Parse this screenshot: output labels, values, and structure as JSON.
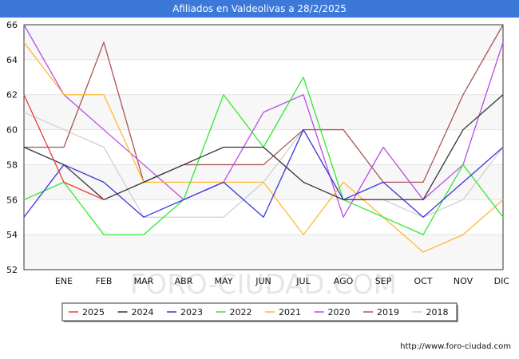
{
  "title": "Afiliados en Valdeolivas a 28/2/2025",
  "source": "http://www.foro-ciudad.com",
  "watermark": "FORO-CIUDAD.COM",
  "chart_data": {
    "type": "line",
    "x": [
      "",
      "ENE",
      "FEB",
      "MAR",
      "ABR",
      "MAY",
      "JUN",
      "JUL",
      "AGO",
      "SEP",
      "OCT",
      "NOV",
      "DIC"
    ],
    "ylim": [
      52,
      66
    ],
    "yticks": [
      52,
      54,
      56,
      58,
      60,
      62,
      64,
      66
    ],
    "grid": true,
    "legend_position": "bottom",
    "series": [
      {
        "name": "2025",
        "color": "#e83a3a",
        "values": [
          62,
          57,
          56,
          null,
          null,
          null,
          null,
          null,
          null,
          null,
          null,
          null,
          null
        ]
      },
      {
        "name": "2024",
        "color": "#333333",
        "values": [
          59,
          58,
          56,
          57,
          58,
          59,
          59,
          57,
          56,
          56,
          56,
          60,
          62
        ]
      },
      {
        "name": "2023",
        "color": "#3838d8",
        "values": [
          55,
          58,
          57,
          55,
          56,
          57,
          55,
          60,
          56,
          57,
          55,
          57,
          59
        ]
      },
      {
        "name": "2022",
        "color": "#33e833",
        "values": [
          56,
          57,
          54,
          54,
          56,
          62,
          59,
          63,
          56,
          55,
          54,
          58,
          55
        ]
      },
      {
        "name": "2021",
        "color": "#ffb833",
        "values": [
          65,
          62,
          62,
          57,
          57,
          57,
          57,
          54,
          57,
          55,
          53,
          54,
          56
        ]
      },
      {
        "name": "2020",
        "color": "#b84ce8",
        "values": [
          66,
          62,
          60,
          58,
          56,
          57,
          61,
          62,
          55,
          59,
          56,
          58,
          65
        ]
      },
      {
        "name": "2019",
        "color": "#a85555",
        "values": [
          59,
          59,
          65,
          57,
          58,
          58,
          58,
          60,
          60,
          57,
          57,
          62,
          66
        ]
      },
      {
        "name": "2018",
        "color": "#d0d0d0",
        "values": [
          61,
          60,
          59,
          55,
          55,
          55,
          57,
          60,
          56,
          56,
          55,
          56,
          59
        ]
      }
    ]
  }
}
